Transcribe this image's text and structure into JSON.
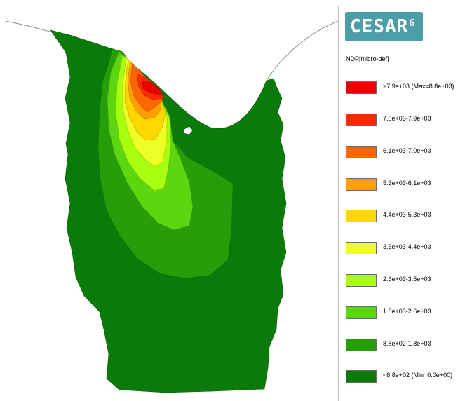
{
  "logo": {
    "text": "CESAR",
    "version": "6",
    "color": "#4d9da8"
  },
  "legend": {
    "quantity": "NDP[micro-def]",
    "entries": [
      {
        "label": ">7.9e+03 (Max=8.8e+03)",
        "color": "#ee0000"
      },
      {
        "label": "7.0e+03-7.9e+03",
        "color": "#ff2a00"
      },
      {
        "label": "6.1e+03-7.0e+03",
        "color": "#ff6600"
      },
      {
        "label": "5.3e+03-6.1e+03",
        "color": "#ffa000"
      },
      {
        "label": "4.4e+03-5.3e+03",
        "color": "#ffd800"
      },
      {
        "label": "3.5e+03-4.4e+03",
        "color": "#eeff26"
      },
      {
        "label": "2.6e+03-3.5e+03",
        "color": "#a8ff10"
      },
      {
        "label": "1.8e+03-2.6e+03",
        "color": "#5cd60e"
      },
      {
        "label": "8.8e+02-1.8e+03",
        "color": "#259e09"
      },
      {
        "label": "<8.8e+02 (Min=0.0e+00)",
        "color": "#0a7a0a"
      }
    ]
  }
}
